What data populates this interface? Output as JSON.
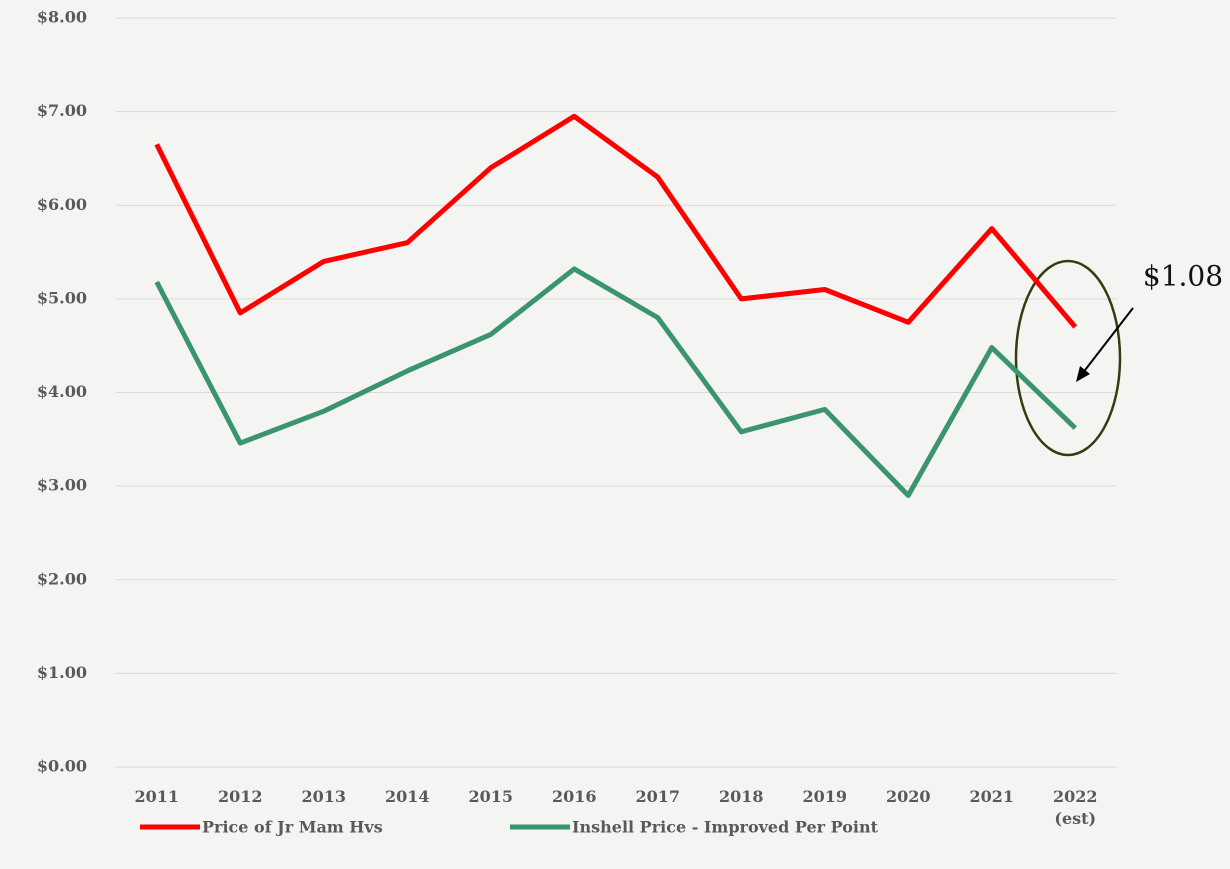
{
  "chart_data": {
    "type": "line",
    "categories": [
      "2011",
      "2012",
      "2013",
      "2014",
      "2015",
      "2016",
      "2017",
      "2018",
      "2019",
      "2020",
      "2021",
      "2022 (est)"
    ],
    "series": [
      {
        "name": "Price of Jr Mam Hvs",
        "color": "#ff0000",
        "values": [
          6.65,
          4.85,
          5.4,
          5.6,
          6.4,
          6.95,
          6.3,
          5.0,
          5.1,
          4.75,
          5.75,
          4.7
        ]
      },
      {
        "name": "Inshell Price - Improved Per Point",
        "color": "#3a9470",
        "values": [
          5.18,
          3.46,
          3.8,
          4.23,
          4.62,
          5.32,
          4.8,
          3.58,
          3.82,
          2.9,
          4.48,
          3.62
        ]
      }
    ],
    "ylim": [
      0,
      8
    ],
    "yticks": [
      {
        "value": 0,
        "label": "$0.00"
      },
      {
        "value": 1,
        "label": "$1.00"
      },
      {
        "value": 2,
        "label": "$2.00"
      },
      {
        "value": 3,
        "label": "$3.00"
      },
      {
        "value": 4,
        "label": "$4.00"
      },
      {
        "value": 5,
        "label": "$5.00"
      },
      {
        "value": 6,
        "label": "$6.00"
      },
      {
        "value": 7,
        "label": "$7.00"
      },
      {
        "value": 8,
        "label": "$8.00"
      }
    ],
    "grid": true,
    "legend": "bottom",
    "annotation": "$1.08"
  }
}
